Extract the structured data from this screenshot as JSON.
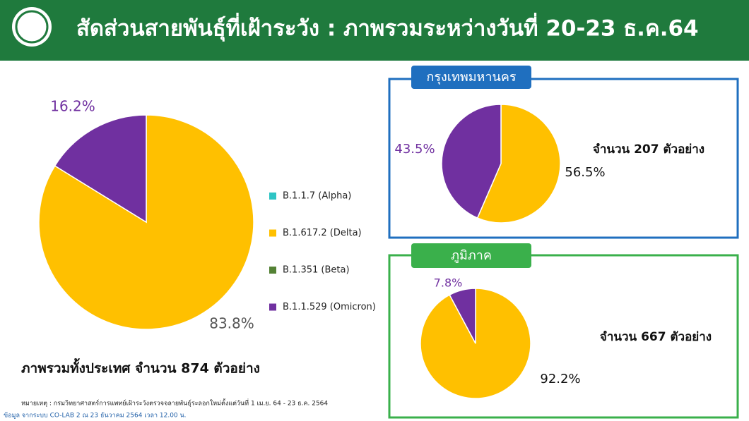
{
  "header": {
    "title": "สัดส่วนสายพันธุ์ที่เฝ้าระวัง : ภาพรวมระหว่างวันที่ 20-23 ธ.ค.64"
  },
  "legend": [
    {
      "name": "B.1.1.7 (Alpha)",
      "color": "#2ec4c4"
    },
    {
      "name": "B.1.617.2 (Delta)",
      "color": "#ffc000"
    },
    {
      "name": "B.1.351 (Beta)",
      "color": "#548235"
    },
    {
      "name": "B.1.1.529 (Omicron)",
      "color": "#7030a0"
    }
  ],
  "chart_data": [
    {
      "type": "pie",
      "values": [
        83.8,
        16.2
      ],
      "value_labels": [
        "83.8%",
        "16.2%"
      ],
      "colors": [
        "#ffc000",
        "#7030a0"
      ],
      "caption": "ภาพรวมทั้งประเทศ จำนวน 874 ตัวอย่าง"
    },
    {
      "type": "pie",
      "title": "กรุงเทพมหานคร",
      "values": [
        56.5,
        43.5
      ],
      "value_labels": [
        "56.5%",
        "43.5%"
      ],
      "colors": [
        "#ffc000",
        "#7030a0"
      ],
      "caption": "จำนวน 207 ตัวอย่าง"
    },
    {
      "type": "pie",
      "title": "ภูมิภาค",
      "values": [
        92.2,
        7.8
      ],
      "value_labels": [
        "92.2%",
        "7.8%"
      ],
      "colors": [
        "#ffc000",
        "#7030a0"
      ],
      "caption": "จำนวน 667 ตัวอย่าง"
    }
  ],
  "footnote": {
    "note": "หมายเหตุ :  กรมวิทยาศาสตร์การแพทย์เฝ้าระวังตรวจจลายพันธุ์ระลอกใหม่ตั้งแต่วันที่ 1 เม.ย. 64 -  23 ธ.ค. 2564",
    "source": "ข้อมูล จากระบบ CO-LAB 2 ณ 23 ธันวาคม 2564 เวลา 12.00 น."
  }
}
